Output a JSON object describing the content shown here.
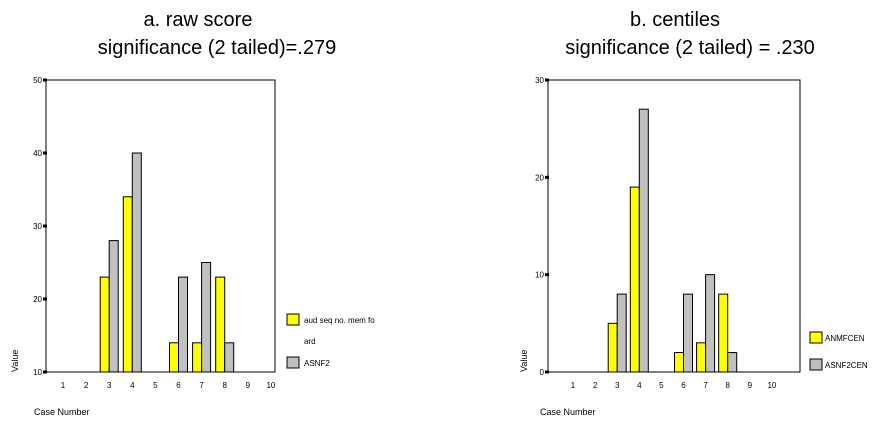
{
  "chart_data": [
    {
      "type": "bar",
      "title": "a. raw score",
      "subtitle": "significance (2 tailed)=.279",
      "xlabel": "Case Number",
      "ylabel": "Value",
      "categories": [
        "1",
        "2",
        "3",
        "4",
        "5",
        "6",
        "7",
        "8",
        "9",
        "10"
      ],
      "yticks": [
        "10",
        "20",
        "30",
        "40",
        "50"
      ],
      "ylim": [
        10,
        50
      ],
      "grid": false,
      "legend_position": "right",
      "series": [
        {
          "name": "aud seq no. mem fo",
          "name_line2": "ard",
          "color": "#ffff00",
          "values": [
            null,
            null,
            23,
            34,
            null,
            14,
            14,
            23,
            null,
            null
          ]
        },
        {
          "name": "ASNF2",
          "color": "#c0c0c0",
          "values": [
            null,
            null,
            28,
            40,
            null,
            23,
            25,
            14,
            null,
            null
          ]
        }
      ]
    },
    {
      "type": "bar",
      "title": "b. centiles",
      "subtitle": "significance (2 tailed) = .230",
      "xlabel": "Case Number",
      "ylabel": "Value",
      "categories": [
        "1",
        "2",
        "3",
        "4",
        "5",
        "6",
        "7",
        "8",
        "9",
        "10"
      ],
      "yticks": [
        "0",
        "10",
        "20",
        "30"
      ],
      "ylim": [
        0,
        30
      ],
      "grid": false,
      "legend_position": "right",
      "series": [
        {
          "name": "ANMFCEN",
          "color": "#ffff00",
          "values": [
            null,
            null,
            5,
            19,
            null,
            2,
            3,
            8,
            null,
            null
          ]
        },
        {
          "name": "ASNF2CEN",
          "color": "#c0c0c0",
          "values": [
            null,
            null,
            8,
            27,
            null,
            8,
            10,
            2,
            null,
            null
          ]
        }
      ]
    }
  ]
}
